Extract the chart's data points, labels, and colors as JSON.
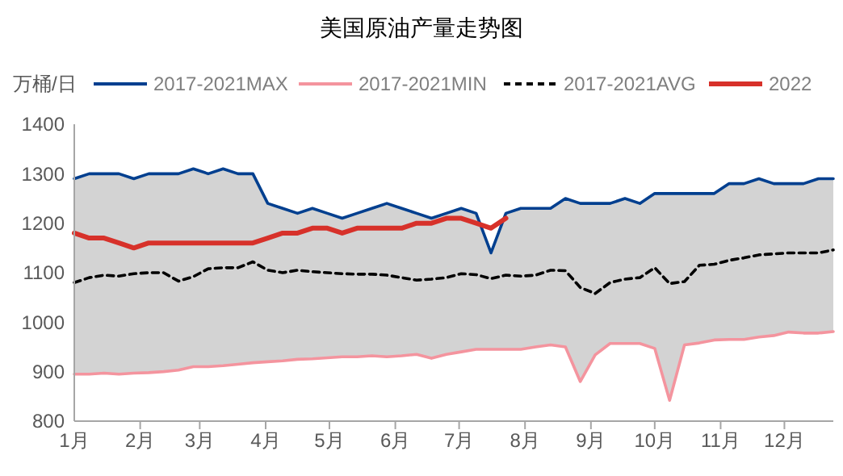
{
  "chart_data": {
    "type": "line",
    "title": "美国原油产量走势图",
    "ylabel": "万桶/日",
    "x": [
      "--01-01",
      "--01-08",
      "--01-15",
      "--01-22",
      "--01-29",
      "--02-05",
      "--02-12",
      "--02-19",
      "--02-26",
      "--03-05",
      "--03-12",
      "--03-19",
      "--03-26",
      "--04-02",
      "--04-09",
      "--04-16",
      "--04-23",
      "--04-30",
      "--05-07",
      "--05-14",
      "--05-21",
      "--05-28",
      "--06-04",
      "--06-11",
      "--06-18",
      "--06-25",
      "--07-02",
      "--07-09",
      "--07-16",
      "--07-23",
      "--07-30",
      "--08-06",
      "--08-13",
      "--08-20",
      "--08-27",
      "--09-03",
      "--09-10",
      "--09-17",
      "--09-24",
      "--10-01",
      "--10-08",
      "--10-15",
      "--10-22",
      "--10-29",
      "--11-05",
      "--11-12",
      "--11-19",
      "--11-26",
      "--12-03",
      "--12-10",
      "--12-17",
      "--12-24"
    ],
    "xlim": [
      "--01-01",
      "--12-24"
    ],
    "xticks": [
      {
        "value": "--01-01",
        "label": "1月"
      },
      {
        "value": "--02-01",
        "label": "2月"
      },
      {
        "value": "--03-01",
        "label": "3月"
      },
      {
        "value": "--04-01",
        "label": "4月"
      },
      {
        "value": "--05-01",
        "label": "5月"
      },
      {
        "value": "--06-01",
        "label": "6月"
      },
      {
        "value": "--07-01",
        "label": "7月"
      },
      {
        "value": "--08-01",
        "label": "8月"
      },
      {
        "value": "--09-01",
        "label": "9月"
      },
      {
        "value": "--10-01",
        "label": "10月"
      },
      {
        "value": "--11-01",
        "label": "11月"
      },
      {
        "value": "--12-01",
        "label": "12月"
      }
    ],
    "ylim": [
      800,
      1400
    ],
    "yticks": [
      800,
      900,
      1000,
      1100,
      1200,
      1300,
      1400
    ],
    "legend": "top",
    "grid": false,
    "series": [
      {
        "name": "2017-2021MAX",
        "color": "#003f8f",
        "values": [
          1290,
          1300,
          1300,
          1300,
          1290,
          1300,
          1300,
          1300,
          1310,
          1300,
          1310,
          1300,
          1300,
          1240,
          1230,
          1220,
          1230,
          1220,
          1210,
          1220,
          1230,
          1240,
          1230,
          1220,
          1210,
          1220,
          1230,
          1220,
          1140,
          1220,
          1230,
          1230,
          1230,
          1250,
          1240,
          1240,
          1240,
          1250,
          1240,
          1260,
          1260,
          1260,
          1260,
          1260,
          1280,
          1280,
          1290,
          1280,
          1280,
          1280,
          1290,
          1290
        ]
      },
      {
        "name": "2017-2021MIN",
        "color": "#f4949e",
        "values": [
          895,
          895,
          897,
          895,
          897,
          898,
          900,
          903,
          910,
          910,
          912,
          915,
          918,
          920,
          922,
          925,
          926,
          928,
          930,
          930,
          932,
          930,
          932,
          935,
          927,
          935,
          940,
          945,
          945,
          945,
          945,
          950,
          954,
          950,
          880,
          934,
          957,
          957,
          957,
          947,
          842,
          954,
          958,
          964,
          965,
          965,
          970,
          973,
          980,
          978,
          978,
          981
        ]
      },
      {
        "name": "2017-2021AVG",
        "color": "#000000",
        "line_style": "dashed",
        "lower": [
          895,
          895,
          897,
          895,
          897,
          898,
          900,
          903,
          910,
          910,
          912,
          915,
          918,
          920,
          922,
          925,
          926,
          928,
          930,
          930,
          932,
          930,
          932,
          935,
          927,
          935,
          940,
          945,
          945,
          945,
          945,
          950,
          954,
          950,
          880,
          934,
          957,
          957,
          957,
          947,
          842,
          954,
          958,
          964,
          965,
          965,
          970,
          973,
          980,
          978,
          978,
          981
        ],
        "upper": [
          1290,
          1300,
          1300,
          1300,
          1290,
          1300,
          1300,
          1300,
          1310,
          1300,
          1310,
          1300,
          1300,
          1240,
          1230,
          1220,
          1230,
          1220,
          1210,
          1220,
          1230,
          1240,
          1230,
          1220,
          1210,
          1220,
          1230,
          1220,
          1140,
          1220,
          1230,
          1230,
          1230,
          1250,
          1240,
          1240,
          1240,
          1250,
          1240,
          1260,
          1260,
          1260,
          1260,
          1260,
          1280,
          1280,
          1290,
          1280,
          1280,
          1280,
          1290,
          1290
        ],
        "values": [
          1080,
          1090,
          1095,
          1093,
          1098,
          1100,
          1100,
          1083,
          1092,
          1108,
          1110,
          1110,
          1122,
          1105,
          1100,
          1105,
          1102,
          1100,
          1098,
          1097,
          1097,
          1095,
          1090,
          1085,
          1087,
          1090,
          1098,
          1096,
          1088,
          1095,
          1093,
          1095,
          1105,
          1104,
          1070,
          1058,
          1080,
          1087,
          1090,
          1110,
          1078,
          1082,
          1115,
          1117,
          1125,
          1130,
          1136,
          1138,
          1140,
          1140,
          1140,
          1146
        ]
      },
      {
        "name": "2022",
        "color": "#d7312a",
        "values": [
          1180,
          1170,
          1170,
          1160,
          1150,
          1160,
          1160,
          1160,
          1160,
          1160,
          1160,
          1160,
          1160,
          1170,
          1180,
          1180,
          1190,
          1190,
          1180,
          1190,
          1190,
          1190,
          1190,
          1200,
          1200,
          1210,
          1210,
          1200,
          1190,
          1210,
          null,
          null,
          null,
          null,
          null,
          null,
          null,
          null,
          null,
          null,
          null,
          null,
          null,
          null,
          null,
          null,
          null,
          null,
          null,
          null,
          null,
          null
        ]
      }
    ]
  }
}
